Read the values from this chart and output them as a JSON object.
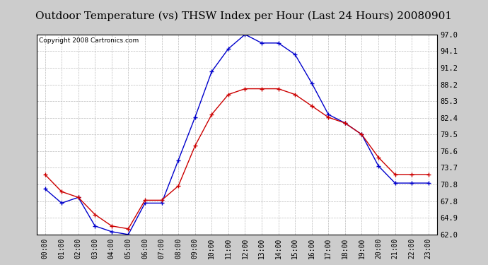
{
  "title": "Outdoor Temperature (vs) THSW Index per Hour (Last 24 Hours) 20080901",
  "copyright": "Copyright 2008 Cartronics.com",
  "hours": [
    "00:00",
    "01:00",
    "02:00",
    "03:00",
    "04:00",
    "05:00",
    "06:00",
    "07:00",
    "08:00",
    "09:00",
    "10:00",
    "11:00",
    "12:00",
    "13:00",
    "14:00",
    "15:00",
    "16:00",
    "17:00",
    "18:00",
    "19:00",
    "20:00",
    "21:00",
    "22:00",
    "23:00"
  ],
  "temp": [
    72.5,
    69.5,
    68.5,
    65.5,
    63.5,
    63.0,
    68.0,
    68.0,
    70.5,
    77.5,
    83.0,
    86.5,
    87.5,
    87.5,
    87.5,
    86.5,
    84.5,
    82.5,
    81.5,
    79.5,
    75.5,
    72.5,
    72.5,
    72.5
  ],
  "thsw": [
    70.0,
    67.5,
    68.5,
    63.5,
    62.5,
    62.0,
    67.5,
    67.5,
    75.0,
    82.5,
    90.5,
    94.5,
    97.0,
    95.5,
    95.5,
    93.5,
    88.5,
    83.0,
    81.5,
    79.5,
    74.0,
    71.0,
    71.0,
    71.0
  ],
  "ylim_min": 62.0,
  "ylim_max": 97.0,
  "yticks": [
    62.0,
    64.9,
    67.8,
    70.8,
    73.7,
    76.6,
    79.5,
    82.4,
    85.3,
    88.2,
    91.2,
    94.1,
    97.0
  ],
  "temp_color": "#cc0000",
  "thsw_color": "#0000cc",
  "bg_color": "#ffffff",
  "grid_color": "#bbbbbb",
  "outer_bg": "#cccccc",
  "title_fontsize": 11,
  "copyright_fontsize": 6.5,
  "marker": "+",
  "marker_size": 5,
  "linewidth": 1.0
}
